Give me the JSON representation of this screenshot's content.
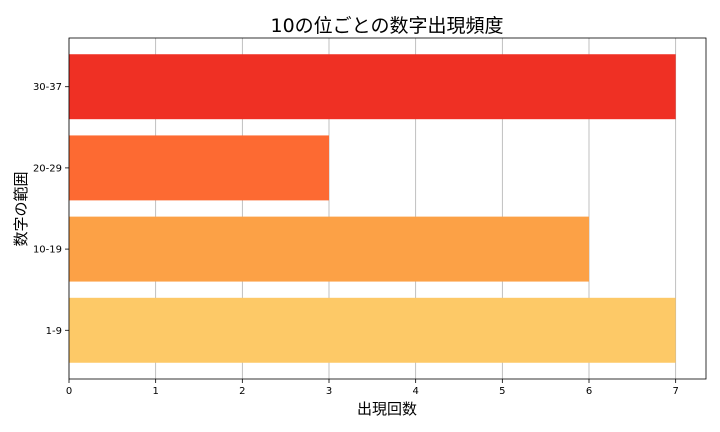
{
  "chart_data": {
    "type": "bar",
    "orientation": "horizontal",
    "title": "10の位ごとの数字出現頻度",
    "xlabel": "出現回数",
    "ylabel": "数字の範囲",
    "categories": [
      "1-9",
      "10-19",
      "20-29",
      "30-37"
    ],
    "values": [
      7,
      6,
      3,
      7
    ],
    "bar_colors": [
      "#fdc967",
      "#fca146",
      "#fd6a32",
      "#ef3024"
    ],
    "xlim": [
      0,
      7.35
    ],
    "xticks": [
      0,
      1,
      2,
      3,
      4,
      5,
      6,
      7
    ],
    "grid": "vertical"
  }
}
